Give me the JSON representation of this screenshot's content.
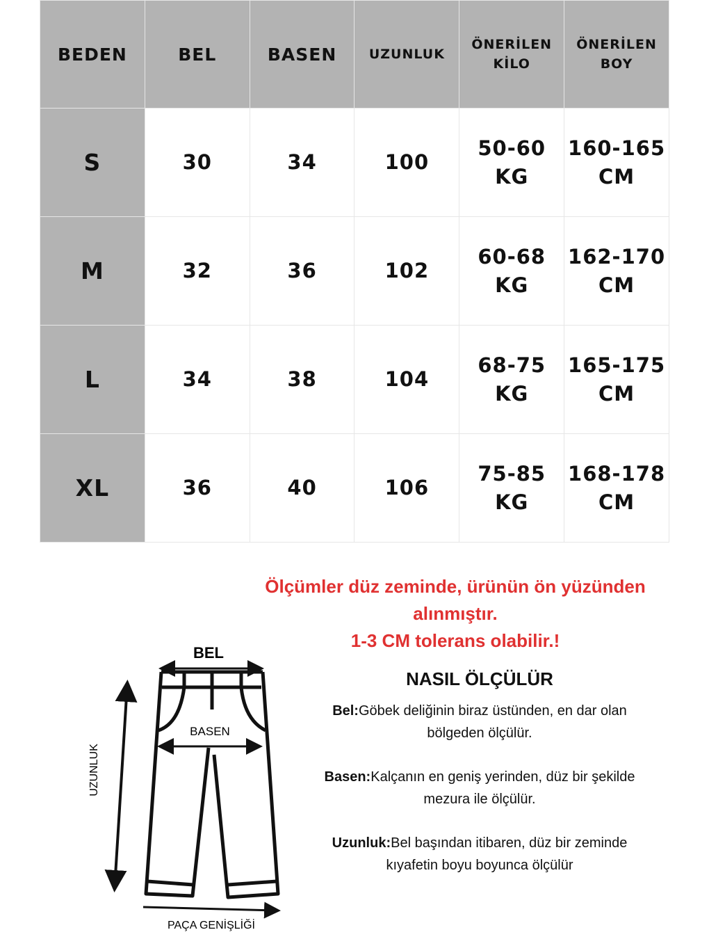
{
  "table": {
    "headers": [
      "BEDEN",
      "BEL",
      "BASEN",
      "UZUNLUK",
      "ÖNERİLEN KİLO",
      "ÖNERİLEN BOY"
    ],
    "rows": [
      {
        "size": "S",
        "bel": "30",
        "basen": "34",
        "uzunluk": "100",
        "kilo": "50-60 KG",
        "boy": "160-165 CM"
      },
      {
        "size": "M",
        "bel": "32",
        "basen": "36",
        "uzunluk": "102",
        "kilo": "60-68 KG",
        "boy": "162-170 CM"
      },
      {
        "size": "L",
        "bel": "34",
        "basen": "38",
        "uzunluk": "104",
        "kilo": "68-75 KG",
        "boy": "165-175 CM"
      },
      {
        "size": "XL",
        "bel": "36",
        "basen": "40",
        "uzunluk": "106",
        "kilo": "75-85 KG",
        "boy": "168-178 CM"
      }
    ]
  },
  "note": {
    "line1": "Ölçümler düz zeminde, ürünün ön yüzünden alınmıştır.",
    "line2": "1-3 CM tolerans olabilir.!",
    "color": "#e03131"
  },
  "how": {
    "title": "NASIL ÖLÇÜLÜR",
    "items": [
      {
        "term": "Bel:",
        "text": "Göbek deliğinin biraz üstünden, en dar olan bölgeden ölçülür."
      },
      {
        "term": "Basen:",
        "text": "Kalçanın en geniş yerinden, düz bir şekilde mezura ile ölçülür."
      },
      {
        "term": "Uzunluk:",
        "text": "Bel başından itibaren, düz bir zeminde kıyafetin boyu boyunca ölçülür"
      }
    ]
  },
  "diagram": {
    "bel": "BEL",
    "basen": "BASEN",
    "uzunluk": "UZUNLUK",
    "paca": "PAÇA GENİŞLİĞİ"
  }
}
